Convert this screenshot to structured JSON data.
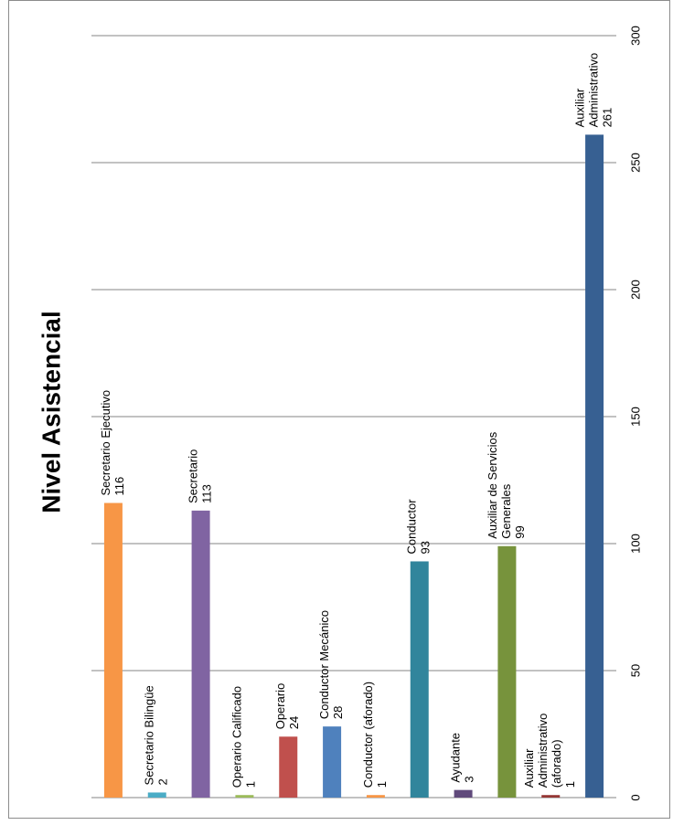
{
  "chart_data": {
    "type": "bar",
    "orientation": "vertical bars in a chart rotated 90 degrees clockwise",
    "title": "Nivel Asistencial",
    "xlabel": "",
    "ylabel": "",
    "ylim": [
      0,
      300
    ],
    "yticks": [
      "0",
      "50",
      "100",
      "150",
      "200",
      "250",
      "300"
    ],
    "grid": true,
    "legend": "none",
    "categories": [
      "Secretario Ejecutivo",
      "Secretario Bilingüe",
      "Secretario",
      "Operario Calificado",
      "Operario",
      "Conductor Mecánico",
      "Conductor (aforado)",
      "Conductor",
      "Ayudante",
      "Auxiliar de Servicios Generales",
      "Auxiliar Administrativo (aforado)",
      "Auxiliar Administrativo"
    ],
    "label_lines": [
      [
        "Secretario Ejecutivo"
      ],
      [
        "Secretario Bilingüe"
      ],
      [
        "Secretario"
      ],
      [
        "Operario Calificado"
      ],
      [
        "Operario"
      ],
      [
        "Conductor Mecánico"
      ],
      [
        "Conductor (aforado)"
      ],
      [
        "Conductor"
      ],
      [
        "Ayudante"
      ],
      [
        "Auxiliar de Servicios",
        "Generales"
      ],
      [
        "Auxiliar",
        "Administrativo",
        "(aforado)"
      ],
      [
        "Auxiliar",
        "Administrativo"
      ]
    ],
    "values": [
      116,
      2,
      113,
      1,
      24,
      28,
      1,
      93,
      3,
      99,
      1,
      261
    ],
    "colors": [
      "#f79646",
      "#4bacc6",
      "#8064a2",
      "#9bbb59",
      "#c0504d",
      "#4f81bd",
      "#f79646",
      "#31859c",
      "#604a7b",
      "#77933c",
      "#953735",
      "#376092"
    ]
  }
}
